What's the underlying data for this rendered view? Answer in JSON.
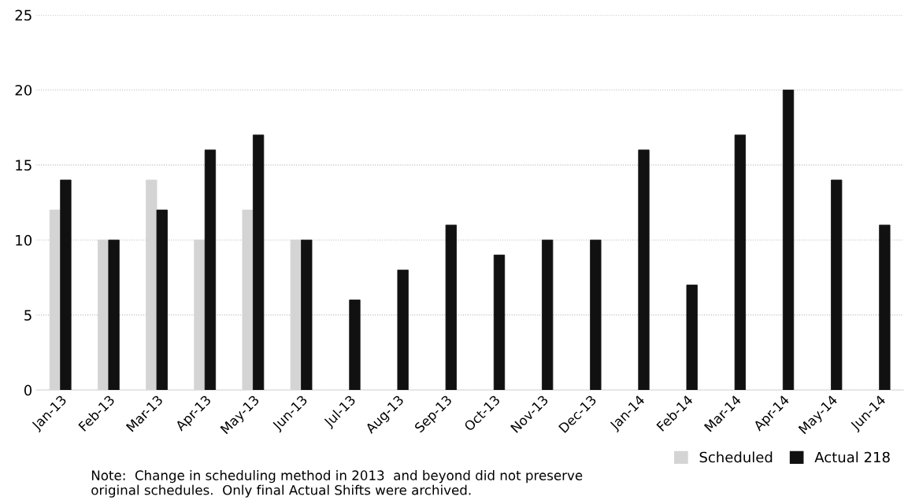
{
  "chart_data": {
    "type": "bar",
    "categories": [
      "Jan-13",
      "Feb-13",
      "Mar-13",
      "Apr-13",
      "May-13",
      "Jun-13",
      "Jul-13",
      "Aug-13",
      "Sep-13",
      "Oct-13",
      "Nov-13",
      "Dec-13",
      "Jan-14",
      "Feb-14",
      "Mar-14",
      "Apr-14",
      "May-14",
      "Jun-14"
    ],
    "series": [
      {
        "name": "Scheduled",
        "color": "#d4d4d4",
        "values": [
          12,
          10,
          14,
          10,
          12,
          10,
          null,
          null,
          null,
          null,
          null,
          null,
          null,
          null,
          null,
          null,
          null,
          null
        ]
      },
      {
        "name": "Actual 218",
        "color": "#111111",
        "values": [
          14,
          10,
          12,
          16,
          17,
          10,
          6,
          8,
          11,
          9,
          10,
          10,
          16,
          7,
          17,
          20,
          14,
          11
        ]
      }
    ],
    "ylim": [
      0,
      25
    ],
    "yticks": [
      0,
      5,
      10,
      15,
      20,
      25
    ],
    "grid": "y",
    "legend": "bottom right",
    "annotations": [
      "Note:  Change in scheduling method in 2013  and beyond did not preserve\noriginal schedules.  Only final Actual Shifts were archived."
    ]
  }
}
